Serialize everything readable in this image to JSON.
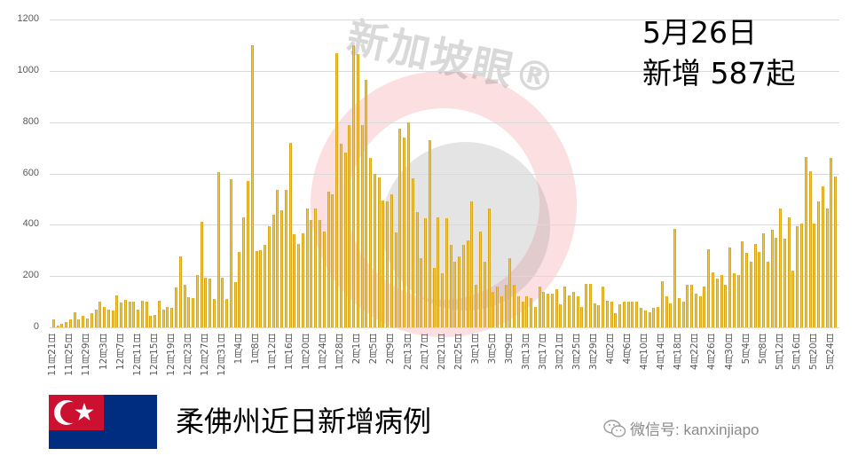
{
  "chart_data": {
    "type": "bar",
    "title": "柔佛州近日新增病例",
    "xlabel": "",
    "ylabel": "",
    "ylim": [
      0,
      1200
    ],
    "yticks": [
      0,
      200,
      400,
      600,
      800,
      1000,
      1200
    ],
    "grid": true,
    "legend": null,
    "bar_color": "#F2B800",
    "annotation": {
      "line1": "5月26日",
      "line2": "新增 587起"
    },
    "x_tick_labels": [
      "11月21日",
      "11月25日",
      "11月29日",
      "12月3日",
      "12月7日",
      "12月11日",
      "12月15日",
      "12月19日",
      "12月23日",
      "12月27日",
      "12月31日",
      "1月4日",
      "1月8日",
      "1月12日",
      "1月16日",
      "1月20日",
      "1月24日",
      "1月28日",
      "2月1日",
      "2月5日",
      "2月9日",
      "2月13日",
      "2月17日",
      "2月21日",
      "2月25日",
      "3月1日",
      "3月5日",
      "3月9日",
      "3月13日",
      "3月17日",
      "3月21日",
      "3月25日",
      "3月29日",
      "4月2日",
      "4月6日",
      "4月10日",
      "4月14日",
      "4月18日",
      "4月22日",
      "4月26日",
      "4月30日",
      "5月4日",
      "5月8日",
      "5月12日",
      "5月16日",
      "5月20日",
      "5月24日"
    ],
    "x_start": "11月21日",
    "x_end": "5月26日",
    "values": [
      32,
      8,
      15,
      20,
      30,
      60,
      32,
      45,
      35,
      55,
      68,
      102,
      78,
      68,
      65,
      125,
      98,
      108,
      100,
      100,
      68,
      105,
      102,
      45,
      48,
      105,
      68,
      78,
      75,
      155,
      278,
      165,
      118,
      115,
      205,
      410,
      192,
      190,
      110,
      605,
      193,
      112,
      578,
      178,
      295,
      428,
      570,
      1100,
      297,
      300,
      320,
      395,
      440,
      535,
      457,
      535,
      720,
      362,
      325,
      365,
      465,
      420,
      465,
      420,
      375,
      530,
      518,
      1068,
      715,
      680,
      790,
      1100,
      1065,
      790,
      965,
      660,
      600,
      585,
      495,
      490,
      520,
      370,
      775,
      740,
      800,
      580,
      450,
      270,
      425,
      730,
      230,
      428,
      210,
      425,
      320,
      255,
      275,
      320,
      340,
      490,
      165,
      375,
      255,
      462,
      140,
      160,
      120,
      165,
      270,
      165,
      120,
      100,
      120,
      115,
      80,
      160,
      140,
      130,
      130,
      150,
      90,
      160,
      125,
      140,
      120,
      80,
      170,
      170,
      95,
      85,
      160,
      105,
      100,
      55,
      90,
      100,
      100,
      100,
      100,
      75,
      65,
      60,
      75,
      80,
      180,
      120,
      95,
      385,
      115,
      100,
      165,
      165,
      130,
      120,
      160,
      305,
      215,
      190,
      205,
      165,
      310,
      210,
      205,
      335,
      290,
      255,
      325,
      295,
      365,
      255,
      380,
      350,
      465,
      345,
      430,
      220,
      395,
      405,
      665,
      610,
      405,
      490,
      550,
      465,
      660,
      587
    ]
  },
  "annotation": {
    "line1": "5月26日",
    "line2": "新增 587起"
  },
  "footer": {
    "caption": "柔佛州近日新增病例",
    "wechat_label": "微信号: kanxinjiapo",
    "flag_name": "Johor flag"
  },
  "watermark": {
    "text": "新加坡眼®"
  },
  "colors": {
    "bar": "#F2B800",
    "flag_blue": "#002D80",
    "flag_red": "#CC1030",
    "grid": "#D9D9D9"
  }
}
